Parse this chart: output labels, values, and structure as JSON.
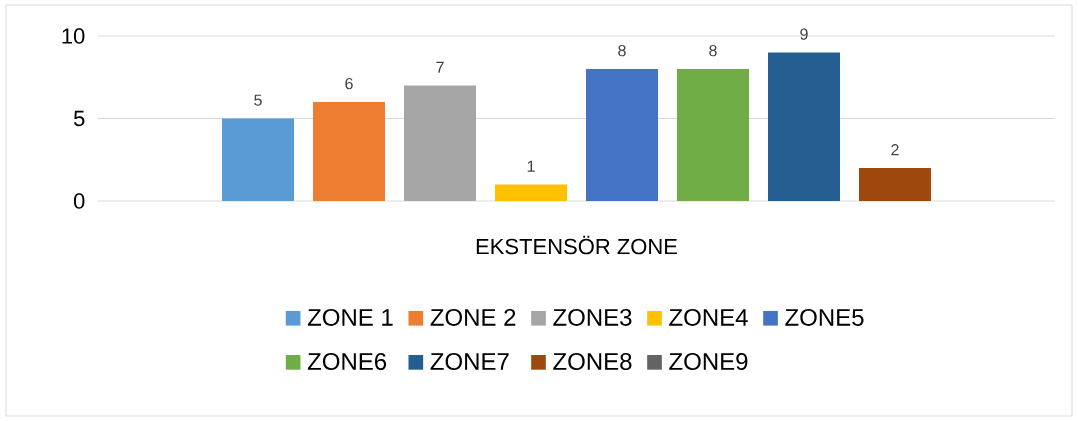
{
  "chart_data": {
    "type": "bar",
    "categories": [
      "EKSTENSÖR ZONE"
    ],
    "series": [
      {
        "name": "ZONE 1",
        "color": "#5b9bd5",
        "values": [
          5
        ]
      },
      {
        "name": "ZONE 2",
        "color": "#ed7d31",
        "values": [
          6
        ]
      },
      {
        "name": "ZONE3",
        "color": "#a5a5a5",
        "values": [
          7
        ]
      },
      {
        "name": "ZONE4",
        "color": "#ffc000",
        "values": [
          1
        ]
      },
      {
        "name": "ZONE5",
        "color": "#4472c4",
        "values": [
          8
        ]
      },
      {
        "name": "ZONE6",
        "color": "#70ad47",
        "values": [
          8
        ]
      },
      {
        "name": "ZONE7",
        "color": "#255e91",
        "values": [
          9
        ]
      },
      {
        "name": "ZONE8",
        "color": "#9e480e",
        "values": [
          2
        ]
      },
      {
        "name": "ZONE9",
        "color": "#636363",
        "values": [
          null
        ]
      }
    ],
    "ylim": [
      0,
      10
    ],
    "yticks": [
      0,
      5,
      10
    ],
    "grid": "y",
    "legend": "bottom",
    "data_labels": true
  }
}
